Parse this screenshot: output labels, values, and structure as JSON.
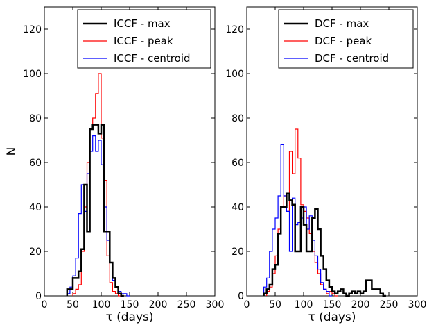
{
  "chart_data": [
    {
      "type": "step-histogram",
      "title": "",
      "xlabel": "τ (days)",
      "ylabel": "N",
      "xlim": [
        0,
        300
      ],
      "ylim": [
        0,
        130
      ],
      "xticks": [
        0,
        50,
        100,
        150,
        200,
        250,
        300
      ],
      "yticks": [
        0,
        20,
        40,
        60,
        80,
        100,
        120
      ],
      "grid": false,
      "legend_position": "top-right",
      "series": [
        {
          "name": "ICCF - max",
          "color": "#000000",
          "style": "thick",
          "bins": [
            [
              40,
              45,
              3
            ],
            [
              45,
              50,
              3
            ],
            [
              50,
              55,
              8
            ],
            [
              55,
              60,
              8
            ],
            [
              60,
              65,
              11
            ],
            [
              65,
              70,
              21
            ],
            [
              70,
              75,
              50
            ],
            [
              75,
              80,
              29
            ],
            [
              80,
              85,
              75
            ],
            [
              85,
              90,
              77
            ],
            [
              90,
              95,
              77
            ],
            [
              95,
              100,
              73
            ],
            [
              100,
              105,
              77
            ],
            [
              105,
              110,
              29
            ],
            [
              110,
              115,
              29
            ],
            [
              115,
              120,
              15
            ],
            [
              120,
              125,
              8
            ],
            [
              125,
              130,
              4
            ],
            [
              130,
              135,
              1
            ],
            [
              135,
              140,
              0
            ]
          ]
        },
        {
          "name": "ICCF - peak",
          "color": "#ff0000",
          "style": "thin",
          "bins": [
            [
              50,
              55,
              1
            ],
            [
              55,
              60,
              3
            ],
            [
              60,
              65,
              5
            ],
            [
              65,
              70,
              20
            ],
            [
              70,
              75,
              40
            ],
            [
              75,
              80,
              60
            ],
            [
              80,
              85,
              75
            ],
            [
              85,
              90,
              80
            ],
            [
              90,
              95,
              91
            ],
            [
              95,
              100,
              100
            ],
            [
              100,
              105,
              71
            ],
            [
              105,
              110,
              52
            ],
            [
              110,
              115,
              18
            ],
            [
              115,
              120,
              6
            ],
            [
              120,
              125,
              2
            ],
            [
              125,
              130,
              1
            ],
            [
              130,
              135,
              0
            ]
          ]
        },
        {
          "name": "ICCF - centroid",
          "color": "#0000ff",
          "style": "thin",
          "bins": [
            [
              40,
              45,
              1
            ],
            [
              45,
              50,
              4
            ],
            [
              50,
              55,
              9
            ],
            [
              55,
              60,
              17
            ],
            [
              60,
              65,
              37
            ],
            [
              65,
              70,
              50
            ],
            [
              70,
              75,
              38
            ],
            [
              75,
              80,
              55
            ],
            [
              80,
              85,
              65
            ],
            [
              85,
              90,
              72
            ],
            [
              90,
              95,
              65
            ],
            [
              95,
              100,
              70
            ],
            [
              100,
              105,
              59
            ],
            [
              105,
              110,
              40
            ],
            [
              110,
              115,
              25
            ],
            [
              115,
              120,
              15
            ],
            [
              120,
              125,
              7
            ],
            [
              125,
              130,
              4
            ],
            [
              130,
              135,
              2
            ],
            [
              135,
              140,
              1
            ],
            [
              140,
              145,
              1
            ],
            [
              145,
              150,
              0
            ]
          ]
        }
      ]
    },
    {
      "type": "step-histogram",
      "title": "",
      "xlabel": "τ (days)",
      "ylabel": "",
      "xlim": [
        0,
        300
      ],
      "ylim": [
        0,
        130
      ],
      "xticks": [
        0,
        50,
        100,
        150,
        200,
        250,
        300
      ],
      "yticks": [
        0,
        20,
        40,
        60,
        80,
        100,
        120
      ],
      "grid": false,
      "legend_position": "top-right",
      "series": [
        {
          "name": "DCF - max",
          "color": "#000000",
          "style": "thick",
          "bins": [
            [
              30,
              35,
              1
            ],
            [
              35,
              40,
              3
            ],
            [
              40,
              45,
              5
            ],
            [
              45,
              50,
              12
            ],
            [
              50,
              55,
              14
            ],
            [
              55,
              60,
              28
            ],
            [
              60,
              65,
              40
            ],
            [
              65,
              70,
              40
            ],
            [
              70,
              75,
              46
            ],
            [
              75,
              80,
              43
            ],
            [
              80,
              85,
              41
            ],
            [
              85,
              90,
              20
            ],
            [
              90,
              95,
              20
            ],
            [
              95,
              100,
              40
            ],
            [
              100,
              105,
              32
            ],
            [
              105,
              110,
              20
            ],
            [
              110,
              115,
              20
            ],
            [
              115,
              120,
              35
            ],
            [
              120,
              125,
              39
            ],
            [
              125,
              130,
              30
            ],
            [
              130,
              135,
              18
            ],
            [
              135,
              140,
              12
            ],
            [
              140,
              145,
              7
            ],
            [
              145,
              150,
              4
            ],
            [
              150,
              155,
              2
            ],
            [
              155,
              160,
              1
            ],
            [
              160,
              165,
              2
            ],
            [
              165,
              170,
              3
            ],
            [
              170,
              175,
              1
            ],
            [
              175,
              180,
              0
            ],
            [
              180,
              185,
              1
            ],
            [
              185,
              190,
              2
            ],
            [
              190,
              195,
              1
            ],
            [
              195,
              200,
              2
            ],
            [
              200,
              205,
              1
            ],
            [
              205,
              210,
              2
            ],
            [
              210,
              215,
              7
            ],
            [
              215,
              220,
              7
            ],
            [
              220,
              225,
              3
            ],
            [
              225,
              230,
              3
            ],
            [
              230,
              235,
              3
            ],
            [
              235,
              240,
              1
            ],
            [
              240,
              245,
              0
            ]
          ]
        },
        {
          "name": "DCF - peak",
          "color": "#ff0000",
          "style": "thin",
          "bins": [
            [
              35,
              40,
              2
            ],
            [
              40,
              45,
              4
            ],
            [
              45,
              50,
              10
            ],
            [
              50,
              55,
              18
            ],
            [
              55,
              60,
              30
            ],
            [
              60,
              65,
              40
            ],
            [
              65,
              70,
              45
            ],
            [
              70,
              75,
              38
            ],
            [
              75,
              80,
              65
            ],
            [
              80,
              85,
              55
            ],
            [
              85,
              90,
              75
            ],
            [
              90,
              95,
              62
            ],
            [
              95,
              100,
              41
            ],
            [
              100,
              105,
              38
            ],
            [
              105,
              110,
              35
            ],
            [
              110,
              115,
              28
            ],
            [
              115,
              120,
              20
            ],
            [
              120,
              125,
              15
            ],
            [
              125,
              130,
              10
            ],
            [
              130,
              135,
              5
            ],
            [
              135,
              140,
              3
            ],
            [
              140,
              145,
              1
            ],
            [
              145,
              150,
              2
            ],
            [
              150,
              155,
              1
            ],
            [
              155,
              160,
              0
            ]
          ]
        },
        {
          "name": "DCF - centroid",
          "color": "#0000ff",
          "style": "thin",
          "bins": [
            [
              30,
              35,
              4
            ],
            [
              35,
              40,
              8
            ],
            [
              40,
              45,
              20
            ],
            [
              45,
              50,
              30
            ],
            [
              50,
              55,
              35
            ],
            [
              55,
              60,
              45
            ],
            [
              60,
              65,
              68
            ],
            [
              65,
              70,
              45
            ],
            [
              70,
              75,
              38
            ],
            [
              75,
              80,
              20
            ],
            [
              80,
              85,
              44
            ],
            [
              85,
              90,
              32
            ],
            [
              90,
              95,
              33
            ],
            [
              95,
              100,
              35
            ],
            [
              100,
              105,
              40
            ],
            [
              105,
              110,
              30
            ],
            [
              110,
              115,
              36
            ],
            [
              115,
              120,
              25
            ],
            [
              120,
              125,
              18
            ],
            [
              125,
              130,
              12
            ],
            [
              130,
              135,
              6
            ],
            [
              135,
              140,
              3
            ],
            [
              140,
              145,
              2
            ],
            [
              145,
              150,
              0
            ]
          ]
        }
      ]
    }
  ]
}
